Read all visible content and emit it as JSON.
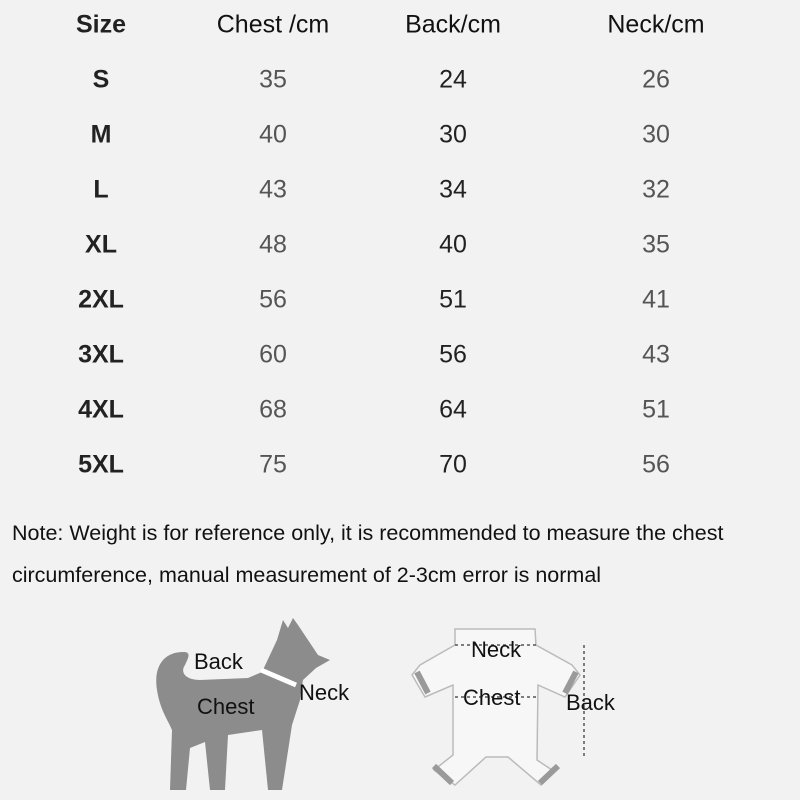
{
  "table": {
    "headers": [
      "Size",
      "Chest /cm",
      "Back/cm",
      "Neck/cm"
    ],
    "rows": [
      [
        "S",
        "35",
        "24",
        "26"
      ],
      [
        "M",
        "40",
        "30",
        "30"
      ],
      [
        "L",
        "43",
        "34",
        "32"
      ],
      [
        "XL",
        "48",
        "40",
        "35"
      ],
      [
        "2XL",
        "56",
        "51",
        "41"
      ],
      [
        "3XL",
        "60",
        "56",
        "43"
      ],
      [
        "4XL",
        "68",
        "64",
        "51"
      ],
      [
        "5XL",
        "75",
        "70",
        "56"
      ]
    ]
  },
  "note": {
    "line1": "Note: Weight is for reference only, it is recommended to measure the chest",
    "line2": "circumference, manual measurement of 2-3cm error is normal"
  },
  "dog_diagram": {
    "back": "Back",
    "chest": "Chest",
    "neck": "Neck",
    "color": "#8c8c8c"
  },
  "garment_diagram": {
    "neck": "Neck",
    "chest": "Chest",
    "back": "Back"
  }
}
